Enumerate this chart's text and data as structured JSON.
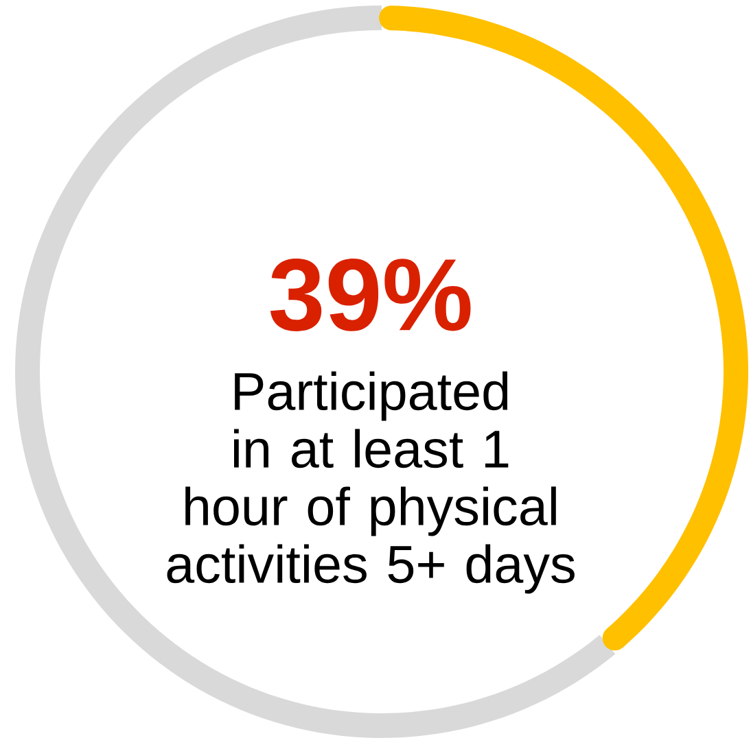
{
  "chart_data": {
    "type": "donut",
    "categories": [
      null,
      null
    ],
    "values": [
      39,
      61
    ],
    "colors": [
      "#ffc000",
      "#d9d9d9"
    ],
    "annotations": [
      "39%",
      "Participated in at least 1 hour of physical activities 5+ days"
    ]
  }
}
